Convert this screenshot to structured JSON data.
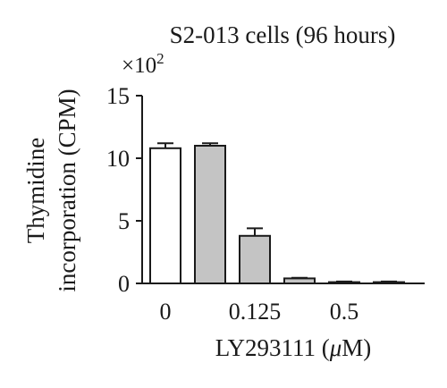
{
  "chart_data": {
    "type": "bar",
    "title": "S2-013 cells (96 hours)",
    "ylabel_line1": "Thymidine",
    "ylabel_line2": "incorporation (CPM)",
    "multiplier_base": "×10",
    "multiplier_exp": "2",
    "xlabel_prefix": "LY293111 (",
    "xlabel_unit_mu": "μ",
    "xlabel_suffix": "M)",
    "ylim": [
      0,
      15
    ],
    "yticks": [
      0,
      5,
      10,
      15
    ],
    "xtick_labels": [
      {
        "label": "0",
        "bar_index": 0
      },
      {
        "label": "0.125",
        "bar_index": 2
      },
      {
        "label": "0.5",
        "bar_index": 4
      }
    ],
    "bars": [
      {
        "value": 10.8,
        "error": 0.4,
        "fill": "white"
      },
      {
        "value": 11.0,
        "error": 0.2,
        "fill": "gray"
      },
      {
        "value": 3.8,
        "error": 0.6,
        "fill": "gray"
      },
      {
        "value": 0.4,
        "error": 0.05,
        "fill": "gray"
      },
      {
        "value": 0.1,
        "error": 0.05,
        "fill": "gray"
      },
      {
        "value": 0.1,
        "error": 0.05,
        "fill": "gray"
      }
    ],
    "colors": {
      "white": "#ffffff",
      "gray": "#c4c4c4",
      "stroke": "#1a1a1a"
    },
    "grid": false
  }
}
